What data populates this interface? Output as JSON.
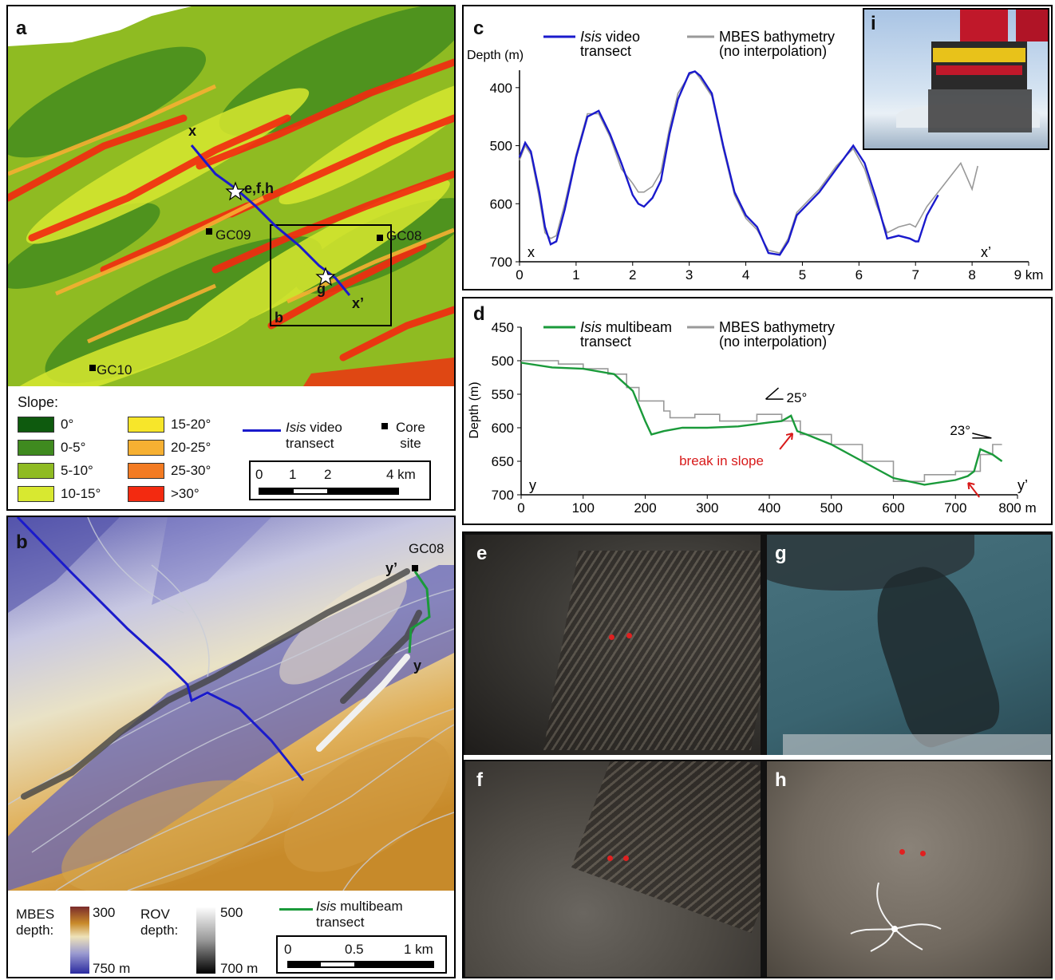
{
  "panel_labels": {
    "a": "a",
    "b": "b",
    "c": "c",
    "d": "d",
    "e": "e",
    "f": "f",
    "g": "g",
    "h": "h",
    "i": "i"
  },
  "panel_a": {
    "labels": {
      "x": "x",
      "xprime": "x’",
      "efh": "e,f,h",
      "g": "g",
      "b": "b"
    },
    "cores": [
      "GC09",
      "GC08",
      "GC10"
    ],
    "legend": {
      "slope_title": "Slope:",
      "classes": [
        {
          "label": "0°",
          "color": "#0e5a0e"
        },
        {
          "label": "0-5°",
          "color": "#3f8a1f"
        },
        {
          "label": "5-10°",
          "color": "#8fbb22"
        },
        {
          "label": "10-15°",
          "color": "#d8e830"
        },
        {
          "label": "15-20°",
          "color": "#f7e62a"
        },
        {
          "label": "20-25°",
          "color": "#f6b032"
        },
        {
          "label": "25-30°",
          "color": "#f37b22"
        },
        {
          "label": ">30°",
          "color": "#f32a10"
        }
      ],
      "transect_italic": "Isis",
      "transect_rest": " video",
      "transect_line2": "transect",
      "core_line1": "Core",
      "core_line2": "site",
      "scale": [
        "0",
        "1",
        "2",
        "4 km"
      ]
    }
  },
  "panel_b": {
    "labels": {
      "gc08": "GC08",
      "yprime": "y’",
      "y": "y"
    },
    "legend": {
      "mbes1": "MBES",
      "mbes2": "depth:",
      "mbes_top": "300",
      "mbes_bot": "750 m",
      "rov1": "ROV",
      "rov2": "depth:",
      "rov_top": "500",
      "rov_bot": "700 m",
      "transect_italic": "Isis",
      "transect_rest": " multibeam",
      "transect_line2": "transect",
      "scale": [
        "0",
        "0.5",
        "1 km"
      ]
    }
  },
  "chart_data": [
    {
      "panel": "c",
      "type": "line",
      "ylabel": "Depth (m)",
      "xlim": [
        0,
        9
      ],
      "ylim": [
        700,
        370
      ],
      "y_reversed": true,
      "xticks": [
        "0",
        "1",
        "2",
        "3",
        "4",
        "5",
        "6",
        "7",
        "8",
        "9 km"
      ],
      "yticks": [
        "400",
        "500",
        "600",
        "700"
      ],
      "end_labels": {
        "start": "x",
        "end": "x’"
      },
      "series": [
        {
          "name_italic": "Isis",
          "name_rest": " video",
          "name_line2": "transect",
          "color": "#1a1acc",
          "x": [
            0,
            0.1,
            0.2,
            0.35,
            0.45,
            0.55,
            0.65,
            0.8,
            1.0,
            1.2,
            1.4,
            1.6,
            1.8,
            2.0,
            2.1,
            2.2,
            2.35,
            2.5,
            2.65,
            2.8,
            3.0,
            3.1,
            3.2,
            3.4,
            3.6,
            3.8,
            4.0,
            4.2,
            4.4,
            4.6,
            4.75,
            4.9,
            5.1,
            5.3,
            5.6,
            5.9,
            6.1,
            6.3,
            6.5,
            6.7,
            6.9,
            7.0,
            7.05,
            7.2,
            7.4
          ],
          "y": [
            520,
            495,
            510,
            580,
            640,
            670,
            665,
            610,
            520,
            450,
            440,
            480,
            530,
            585,
            600,
            605,
            590,
            560,
            480,
            420,
            375,
            372,
            380,
            410,
            500,
            580,
            620,
            640,
            685,
            688,
            665,
            620,
            600,
            580,
            540,
            500,
            530,
            590,
            660,
            655,
            660,
            665,
            665,
            620,
            585
          ]
        },
        {
          "name": "MBES bathymetry",
          "name_line2": "(no interpolation)",
          "color": "#999999",
          "x": [
            0,
            0.1,
            0.2,
            0.35,
            0.45,
            0.55,
            0.65,
            0.8,
            1.0,
            1.2,
            1.4,
            1.6,
            1.8,
            2.0,
            2.1,
            2.2,
            2.35,
            2.5,
            2.65,
            2.8,
            3.0,
            3.1,
            3.2,
            3.4,
            3.6,
            3.8,
            4.0,
            4.2,
            4.4,
            4.6,
            4.75,
            4.9,
            5.1,
            5.3,
            5.6,
            5.9,
            6.1,
            6.3,
            6.5,
            6.7,
            6.9,
            7.0,
            7.2,
            7.4,
            7.6,
            7.8,
            8.0,
            8.1
          ],
          "y": [
            525,
            500,
            515,
            590,
            650,
            660,
            655,
            600,
            515,
            445,
            445,
            485,
            540,
            565,
            580,
            580,
            570,
            545,
            470,
            410,
            378,
            372,
            385,
            415,
            505,
            585,
            625,
            645,
            680,
            685,
            660,
            615,
            595,
            575,
            535,
            505,
            540,
            600,
            650,
            640,
            635,
            640,
            605,
            580,
            555,
            530,
            575,
            535
          ]
        }
      ]
    },
    {
      "panel": "d",
      "type": "line",
      "ylabel": "Depth (m)",
      "xlim": [
        0,
        800
      ],
      "ylim": [
        700,
        450
      ],
      "y_reversed": true,
      "xticks": [
        "0",
        "100",
        "200",
        "300",
        "400",
        "500",
        "600",
        "700",
        "800 m"
      ],
      "yticks": [
        "450",
        "500",
        "550",
        "600",
        "650",
        "700"
      ],
      "end_labels": {
        "start": "y",
        "end": "y’"
      },
      "annotations": {
        "angle1": "25°",
        "angle2": "23°",
        "break": "break in slope"
      },
      "series": [
        {
          "name_italic": "Isis",
          "name_rest": " multibeam",
          "name_line2": "transect",
          "color": "#1a9a3a",
          "x": [
            0,
            50,
            100,
            150,
            180,
            200,
            210,
            230,
            260,
            300,
            350,
            400,
            420,
            435,
            445,
            460,
            500,
            550,
            600,
            650,
            700,
            720,
            730,
            740,
            760,
            775
          ],
          "y": [
            503,
            510,
            512,
            520,
            545,
            590,
            610,
            605,
            600,
            600,
            598,
            592,
            590,
            582,
            605,
            610,
            625,
            650,
            675,
            685,
            678,
            672,
            665,
            632,
            640,
            650
          ]
        },
        {
          "name": "MBES bathymetry",
          "name_line2": "(no interpolation)",
          "color": "#999999",
          "x": [
            0,
            60,
            60,
            100,
            100,
            140,
            140,
            170,
            170,
            190,
            190,
            230,
            230,
            240,
            240,
            280,
            280,
            320,
            320,
            380,
            380,
            420,
            420,
            450,
            450,
            500,
            500,
            550,
            550,
            600,
            600,
            650,
            650,
            700,
            700,
            740,
            740,
            760,
            760,
            775
          ],
          "y": [
            500,
            500,
            505,
            505,
            512,
            512,
            520,
            520,
            540,
            540,
            560,
            560,
            575,
            575,
            585,
            585,
            580,
            580,
            590,
            590,
            580,
            580,
            590,
            590,
            610,
            610,
            625,
            625,
            650,
            650,
            680,
            680,
            670,
            670,
            665,
            665,
            640,
            640,
            625,
            625
          ]
        }
      ]
    }
  ]
}
